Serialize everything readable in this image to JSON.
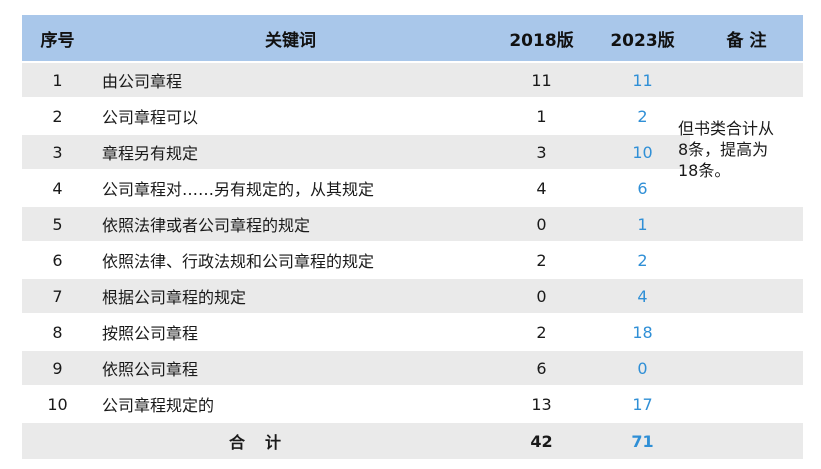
{
  "header": {
    "no": "序号",
    "keyword": "关键词",
    "v2018": "2018版",
    "v2023": "2023版",
    "note": "备 注"
  },
  "rows": [
    {
      "no": "1",
      "keyword": "由公司章程",
      "v2018": "11",
      "v2023": "11"
    },
    {
      "no": "2",
      "keyword": "公司章程可以",
      "v2018": "1",
      "v2023": "2"
    },
    {
      "no": "3",
      "keyword": "章程另有规定",
      "v2018": "3",
      "v2023": "10"
    },
    {
      "no": "4",
      "keyword": "公司章程对……另有规定的，从其规定",
      "v2018": "4",
      "v2023": "6"
    },
    {
      "no": "5",
      "keyword": "依照法律或者公司章程的规定",
      "v2018": "0",
      "v2023": "1"
    },
    {
      "no": "6",
      "keyword": "依照法律、行政法规和公司章程的规定",
      "v2018": "2",
      "v2023": "2"
    },
    {
      "no": "7",
      "keyword": "根据公司章程的规定",
      "v2018": "0",
      "v2023": "4"
    },
    {
      "no": "8",
      "keyword": "按照公司章程",
      "v2018": "2",
      "v2023": "18"
    },
    {
      "no": "9",
      "keyword": "依照公司章程",
      "v2018": "6",
      "v2023": "0"
    },
    {
      "no": "10",
      "keyword": "公司章程规定的",
      "v2018": "13",
      "v2023": "17"
    }
  ],
  "total": {
    "label": "合计",
    "v2018": "42",
    "v2023": "71"
  },
  "note_text": "但书类合计从\n8条，提高为\n18条。",
  "colors": {
    "header_bg": "#a9c7ea",
    "band_bg": "#eaeaea",
    "v2023_text": "#2f8fd6"
  }
}
